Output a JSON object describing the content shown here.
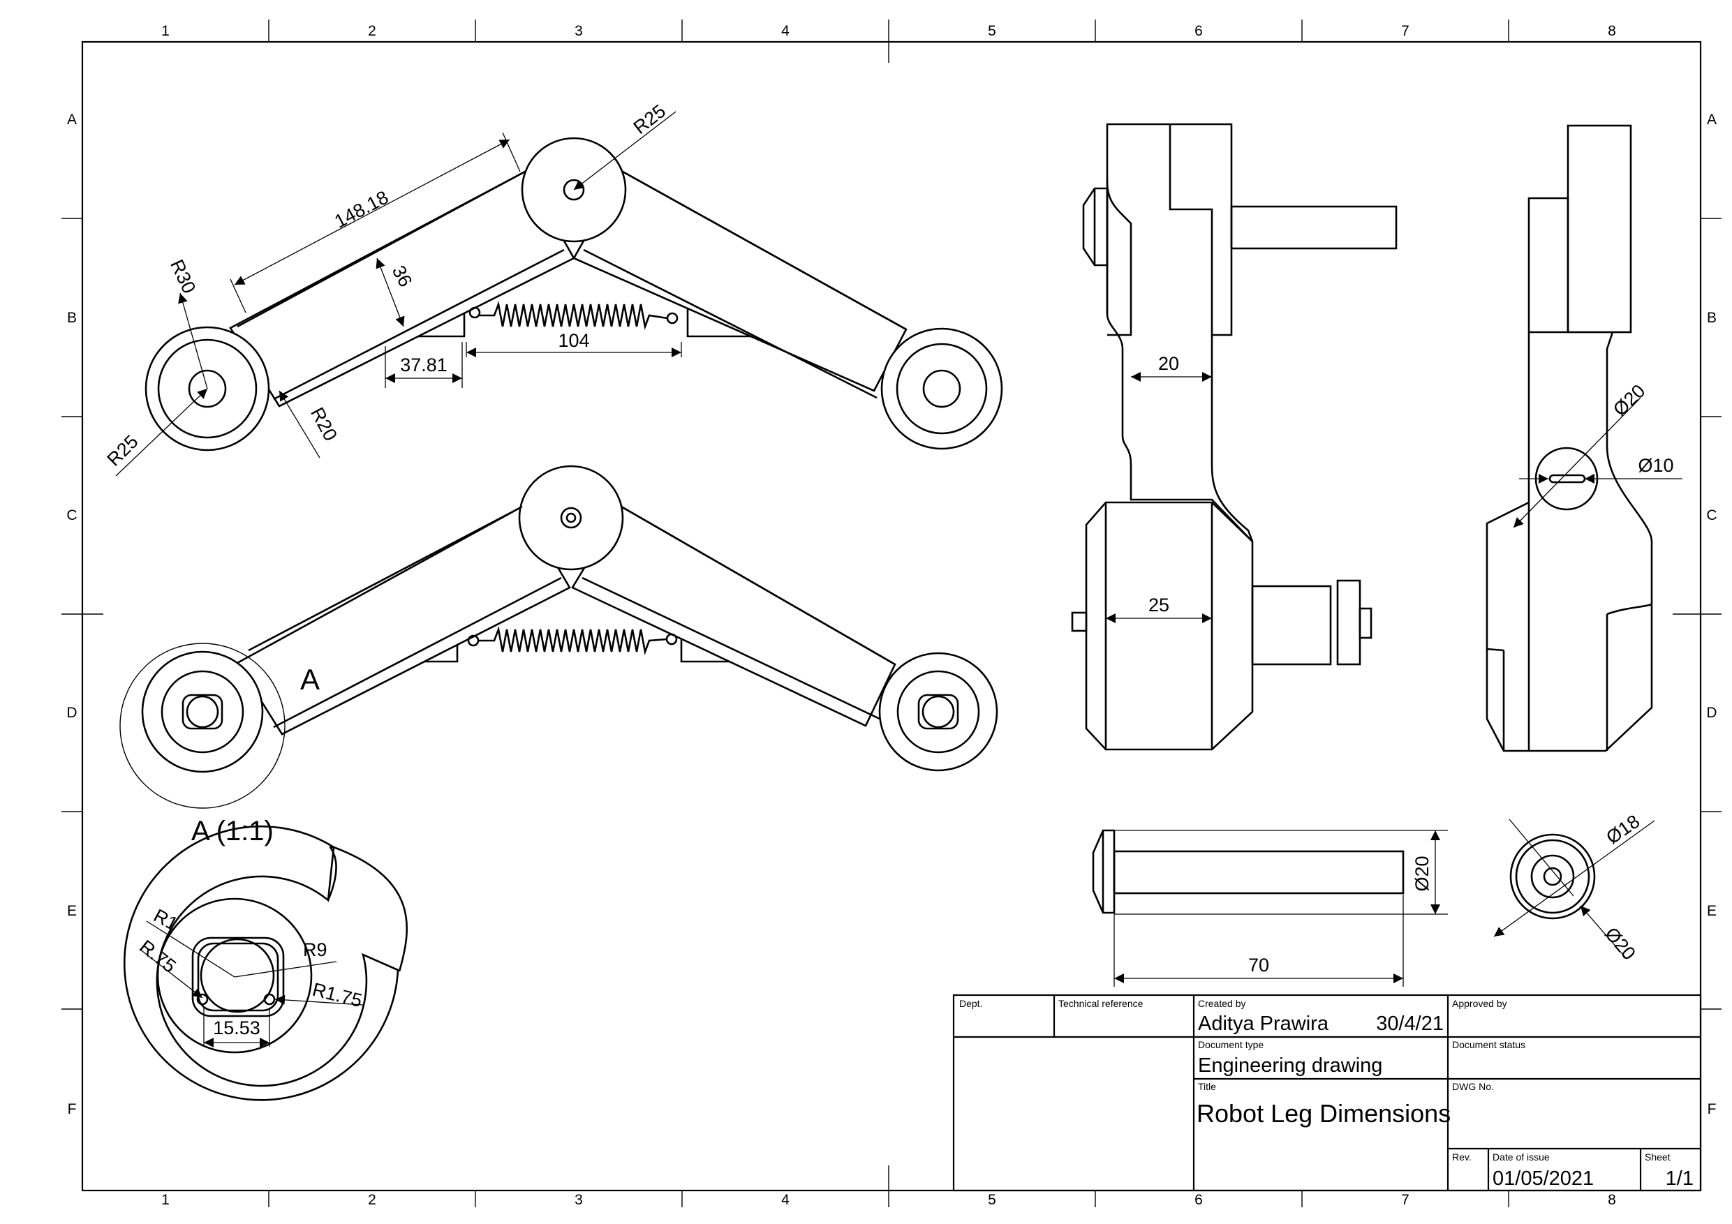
{
  "border": {
    "columns": [
      "1",
      "2",
      "3",
      "4",
      "5",
      "6",
      "7",
      "8"
    ],
    "rows": [
      "A",
      "B",
      "C",
      "D",
      "E",
      "F"
    ]
  },
  "dimensions": {
    "top_view": {
      "length": "148.18",
      "width": "36",
      "radius_pivot": "R25",
      "radius_foot": "R30",
      "radius_foot_inner": "R25",
      "fillet": "R20",
      "offset": "37.81",
      "spring_span": "104"
    },
    "detail_label": "A",
    "front_view": {
      "neck": "20",
      "body": "25"
    },
    "side_view": {
      "bore": "Ø20",
      "shaft": "Ø10"
    },
    "pin_view": {
      "diameter": "Ø20",
      "length": "70"
    },
    "washer_view": {
      "outer": "Ø18",
      "inner": "Ø20"
    },
    "detail_view": {
      "title": "A (1:1)",
      "r1": "R1",
      "r75": "R.75",
      "r9": "R9",
      "r175": "R1.75",
      "width": "15.53"
    }
  },
  "title_block": {
    "dept_label": "Dept.",
    "tech_ref_label": "Technical reference",
    "created_by_label": "Created by",
    "created_by": "Aditya Prawira",
    "created_date": "30/4/21",
    "approved_by_label": "Approved by",
    "doc_type_label": "Document type",
    "doc_type": "Engineering drawing",
    "doc_status_label": "Document status",
    "title_label": "Title",
    "title": "Robot Leg Dimensions",
    "dwg_no_label": "DWG No.",
    "rev_label": "Rev.",
    "date_label": "Date of issue",
    "date": "01/05/2021",
    "sheet_label": "Sheet",
    "sheet": "1/1"
  }
}
